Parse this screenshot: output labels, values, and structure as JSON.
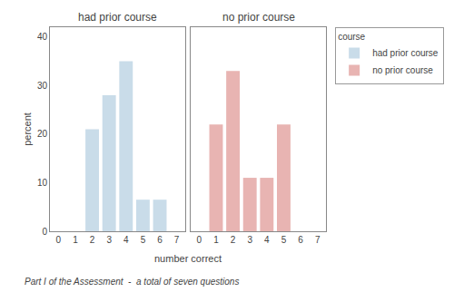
{
  "chart_data": [
    {
      "type": "bar",
      "title": "had prior course",
      "xlabel": "number correct",
      "ylabel": "percent",
      "caption": "Part I of the Assessment  -  a total of seven questions",
      "legend_title": "course",
      "legend": "upper right",
      "grid": false,
      "categories": [
        "0",
        "1",
        "2",
        "3",
        "4",
        "5",
        "6",
        "7"
      ],
      "series": [
        {
          "name": "had prior course",
          "color": "#c9dce9",
          "values": [
            0,
            0,
            21,
            28,
            35,
            6.5,
            6.5,
            0
          ]
        }
      ],
      "ylim": [
        0,
        42
      ],
      "yticks": [
        0,
        10,
        20,
        30,
        40
      ]
    },
    {
      "type": "bar",
      "title": "no prior course",
      "grid": false,
      "tick_labels": "x",
      "categories": [
        "0",
        "1",
        "2",
        "3",
        "4",
        "5",
        "6",
        "7"
      ],
      "series": [
        {
          "name": "no prior course",
          "color": "#e8b4b2",
          "values": [
            0,
            22,
            33,
            11,
            11,
            22,
            0,
            0
          ]
        }
      ],
      "ylim": [
        0,
        42
      ],
      "yticks": [
        0,
        10,
        20,
        30,
        40
      ]
    }
  ]
}
